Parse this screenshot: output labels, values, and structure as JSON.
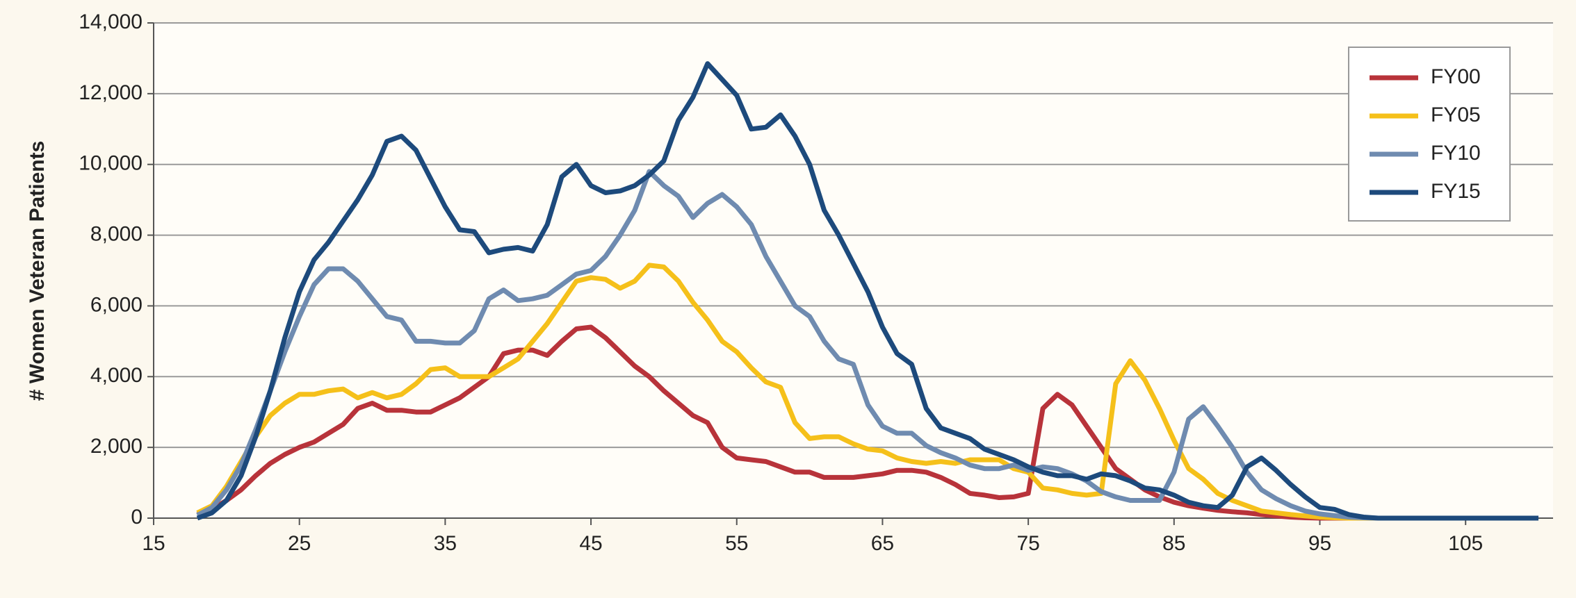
{
  "chart_data": {
    "type": "line",
    "y_label": "# Women Veteran Patients",
    "x": [
      18,
      19,
      20,
      21,
      22,
      23,
      24,
      25,
      26,
      27,
      28,
      29,
      30,
      31,
      32,
      33,
      34,
      35,
      36,
      37,
      38,
      39,
      40,
      41,
      42,
      43,
      44,
      45,
      46,
      47,
      48,
      49,
      50,
      51,
      52,
      53,
      54,
      55,
      56,
      57,
      58,
      59,
      60,
      61,
      62,
      63,
      64,
      65,
      66,
      67,
      68,
      69,
      70,
      71,
      72,
      73,
      74,
      75,
      76,
      77,
      78,
      79,
      80,
      81,
      82,
      83,
      84,
      85,
      86,
      87,
      88,
      89,
      90,
      91,
      92,
      93,
      94,
      95,
      96,
      97,
      98,
      99,
      100,
      101,
      102,
      103,
      104,
      105,
      106,
      107,
      108,
      109,
      110
    ],
    "series": [
      {
        "name": "FY00",
        "color": "#b8333a",
        "values": [
          100,
          250,
          500,
          800,
          1200,
          1550,
          1800,
          2000,
          2150,
          2400,
          2650,
          3100,
          3250,
          3050,
          3050,
          3000,
          3000,
          3200,
          3400,
          3700,
          4000,
          4650,
          4750,
          4750,
          4600,
          5000,
          5350,
          5400,
          5100,
          4700,
          4300,
          4000,
          3600,
          3250,
          2900,
          2700,
          2000,
          1700,
          1650,
          1600,
          1450,
          1300,
          1300,
          1150,
          1150,
          1150,
          1200,
          1250,
          1350,
          1350,
          1300,
          1150,
          950,
          700,
          650,
          580,
          600,
          700,
          3100,
          3500,
          3200,
          2600,
          2000,
          1400,
          1100,
          800,
          600,
          450,
          350,
          280,
          220,
          180,
          150,
          100,
          60,
          30,
          10,
          0,
          0,
          0,
          0,
          0,
          0,
          0,
          0,
          0,
          0,
          0,
          0,
          0,
          0,
          0,
          0
        ]
      },
      {
        "name": "FY05",
        "color": "#f5c01a",
        "values": [
          150,
          350,
          900,
          1600,
          2300,
          2900,
          3250,
          3500,
          3500,
          3600,
          3650,
          3400,
          3550,
          3400,
          3500,
          3800,
          4200,
          4250,
          4000,
          4000,
          4000,
          4250,
          4500,
          5000,
          5500,
          6100,
          6700,
          6800,
          6750,
          6500,
          6700,
          7150,
          7100,
          6700,
          6100,
          5600,
          5000,
          4700,
          4250,
          3850,
          3700,
          2700,
          2250,
          2300,
          2300,
          2100,
          1950,
          1900,
          1700,
          1600,
          1550,
          1600,
          1550,
          1650,
          1650,
          1650,
          1400,
          1300,
          850,
          800,
          700,
          650,
          700,
          3800,
          4450,
          3900,
          3100,
          2200,
          1400,
          1100,
          700,
          500,
          350,
          200,
          150,
          100,
          60,
          30,
          10,
          0,
          0,
          0,
          0,
          0,
          0,
          0,
          0,
          0,
          0,
          0,
          0,
          0,
          0
        ]
      },
      {
        "name": "FY10",
        "color": "#6f8bb0",
        "values": [
          80,
          300,
          800,
          1500,
          2500,
          3600,
          4700,
          5700,
          6600,
          7050,
          7050,
          6700,
          6200,
          5700,
          5600,
          5000,
          5000,
          4950,
          4950,
          5300,
          6200,
          6450,
          6150,
          6200,
          6300,
          6600,
          6900,
          7000,
          7400,
          8000,
          8700,
          9800,
          9400,
          9100,
          8500,
          8900,
          9150,
          8800,
          8300,
          7400,
          6700,
          6000,
          5700,
          5000,
          4500,
          4350,
          3200,
          2600,
          2400,
          2400,
          2050,
          1850,
          1700,
          1500,
          1400,
          1400,
          1500,
          1350,
          1450,
          1400,
          1250,
          1050,
          750,
          600,
          500,
          500,
          500,
          1300,
          2800,
          3150,
          2600,
          2000,
          1300,
          800,
          550,
          350,
          200,
          120,
          70,
          30,
          10,
          0,
          0,
          0,
          0,
          0,
          0,
          0,
          0,
          0,
          0,
          0,
          0
        ]
      },
      {
        "name": "FY15",
        "color": "#1d4a7c",
        "values": [
          0,
          150,
          500,
          1200,
          2300,
          3600,
          5100,
          6400,
          7300,
          7800,
          8400,
          9000,
          9700,
          10650,
          10800,
          10400,
          9600,
          8800,
          8150,
          8100,
          7500,
          7600,
          7650,
          7550,
          8300,
          9650,
          10000,
          9400,
          9200,
          9250,
          9400,
          9700,
          10100,
          11250,
          11900,
          12850,
          12400,
          11950,
          11000,
          11050,
          11400,
          10800,
          10000,
          8700,
          8000,
          7200,
          6400,
          5400,
          4650,
          4350,
          3100,
          2550,
          2400,
          2250,
          1950,
          1800,
          1650,
          1450,
          1300,
          1200,
          1200,
          1100,
          1250,
          1200,
          1050,
          850,
          800,
          650,
          450,
          350,
          300,
          650,
          1450,
          1700,
          1350,
          950,
          600,
          300,
          250,
          100,
          30,
          0,
          0,
          0,
          0,
          0,
          0,
          0,
          0,
          0,
          0,
          0,
          0
        ]
      }
    ],
    "xlim": [
      15,
      111
    ],
    "xticks": [
      15,
      25,
      35,
      45,
      55,
      65,
      75,
      85,
      95,
      105
    ],
    "ylim": [
      0,
      14000
    ],
    "yticks": [
      0,
      {
        "value": 2000,
        "label": "2,000"
      },
      {
        "value": 4000,
        "label": "4,000"
      },
      {
        "value": 6000,
        "label": "6,000"
      },
      {
        "value": 8000,
        "label": "8,000"
      },
      {
        "value": 10000,
        "label": "10,000"
      },
      {
        "value": 12000,
        "label": "12,000"
      },
      {
        "value": 14000,
        "label": "14,000"
      }
    ],
    "grid": true,
    "legend": "upper right"
  }
}
